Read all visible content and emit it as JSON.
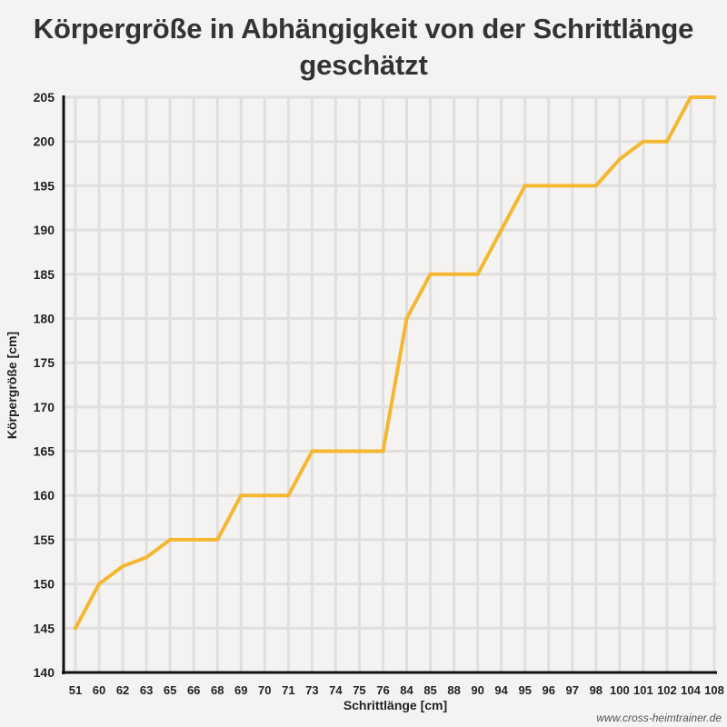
{
  "title_line1": "Körpergröße in Abhängigkeit von der Schrittlänge",
  "title_line2": "geschätzt",
  "watermark": "www.cross-heimtrainer.de",
  "colors": {
    "background": "#f4f3f2",
    "grid": "#e0dfde",
    "axis": "#111111",
    "line": "#f5b731",
    "text": "#333333"
  },
  "chart_data": {
    "type": "line",
    "title": "Körpergröße in Abhängigkeit von der Schrittlänge geschätzt",
    "xlabel": "Schrittlänge [cm]",
    "ylabel": "Körpergröße [cm]",
    "categories": [
      "51",
      "60",
      "62",
      "63",
      "65",
      "66",
      "68",
      "69",
      "70",
      "71",
      "73",
      "74",
      "75",
      "76",
      "84",
      "85",
      "88",
      "90",
      "94",
      "95",
      "96",
      "97",
      "98",
      "100",
      "101",
      "102",
      "104",
      "108"
    ],
    "series": [
      {
        "values": [
          145,
          150,
          152,
          153,
          155,
          155,
          155,
          160,
          160,
          160,
          165,
          165,
          165,
          165,
          180,
          185,
          185,
          185,
          190,
          195,
          195,
          195,
          195,
          198,
          200,
          200,
          205,
          205
        ]
      }
    ],
    "ylim": [
      140,
      205
    ],
    "yticks": [
      140,
      145,
      150,
      155,
      160,
      165,
      170,
      175,
      180,
      185,
      190,
      195,
      200,
      205
    ],
    "grid": true,
    "legend": "none"
  }
}
